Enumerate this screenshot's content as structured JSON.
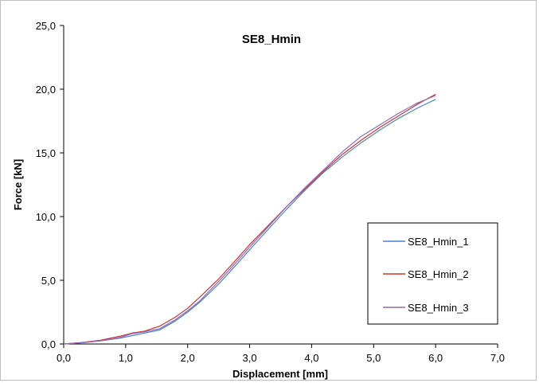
{
  "chart_data": {
    "type": "line",
    "title": "SE8_Hmin",
    "xlabel": "Displacement [mm]",
    "ylabel": "Force [kN]",
    "xlim": [
      0,
      7
    ],
    "ylim": [
      0,
      25
    ],
    "xticks": [
      0,
      1,
      2,
      3,
      4,
      5,
      6,
      7
    ],
    "yticks": [
      0,
      5,
      10,
      15,
      20,
      25
    ],
    "xtick_labels": [
      "0,0",
      "1,0",
      "2,0",
      "3,0",
      "4,0",
      "5,0",
      "6,0",
      "7,0"
    ],
    "ytick_labels": [
      "0,0",
      "5,0",
      "10,0",
      "15,0",
      "20,0",
      "25,0"
    ],
    "grid": false,
    "legend_position": "right",
    "series": [
      {
        "name": "SE8_Hmin_1",
        "color": "#4a86c8",
        "x": [
          0,
          0.3,
          0.6,
          0.9,
          1.1,
          1.3,
          1.55,
          1.8,
          2.0,
          2.2,
          2.5,
          2.8,
          3.0,
          3.3,
          3.6,
          3.9,
          4.2,
          4.5,
          4.8,
          5.1,
          5.4,
          5.7,
          6.0
        ],
        "y": [
          0,
          0.1,
          0.25,
          0.45,
          0.65,
          0.85,
          1.1,
          1.8,
          2.5,
          3.3,
          4.7,
          6.3,
          7.4,
          9.0,
          10.6,
          12.1,
          13.5,
          14.7,
          15.8,
          16.8,
          17.7,
          18.5,
          19.2
        ]
      },
      {
        "name": "SE8_Hmin_2",
        "color": "#d0342c",
        "x": [
          0,
          0.3,
          0.6,
          0.9,
          1.1,
          1.3,
          1.55,
          1.8,
          2.0,
          2.2,
          2.5,
          2.8,
          3.0,
          3.3,
          3.6,
          3.9,
          4.2,
          4.5,
          4.8,
          5.1,
          5.4,
          5.7,
          6.0
        ],
        "y": [
          0,
          0.12,
          0.3,
          0.6,
          0.85,
          1.0,
          1.4,
          2.1,
          2.8,
          3.7,
          5.1,
          6.7,
          7.8,
          9.3,
          10.8,
          12.2,
          13.6,
          14.9,
          16.0,
          17.0,
          17.9,
          18.8,
          19.6
        ]
      },
      {
        "name": "SE8_Hmin_3",
        "color": "#8a6bbf",
        "x": [
          0,
          0.3,
          0.6,
          0.9,
          1.1,
          1.3,
          1.55,
          1.8,
          2.0,
          2.2,
          2.5,
          2.8,
          3.0,
          3.3,
          3.6,
          3.9,
          4.2,
          4.5,
          4.8,
          5.1,
          5.4,
          5.7,
          6.0
        ],
        "y": [
          0,
          0.1,
          0.25,
          0.5,
          0.8,
          0.95,
          1.2,
          1.9,
          2.6,
          3.4,
          4.9,
          6.5,
          7.6,
          9.2,
          10.8,
          12.3,
          13.7,
          15.1,
          16.3,
          17.2,
          18.1,
          18.9,
          19.5
        ]
      }
    ]
  }
}
